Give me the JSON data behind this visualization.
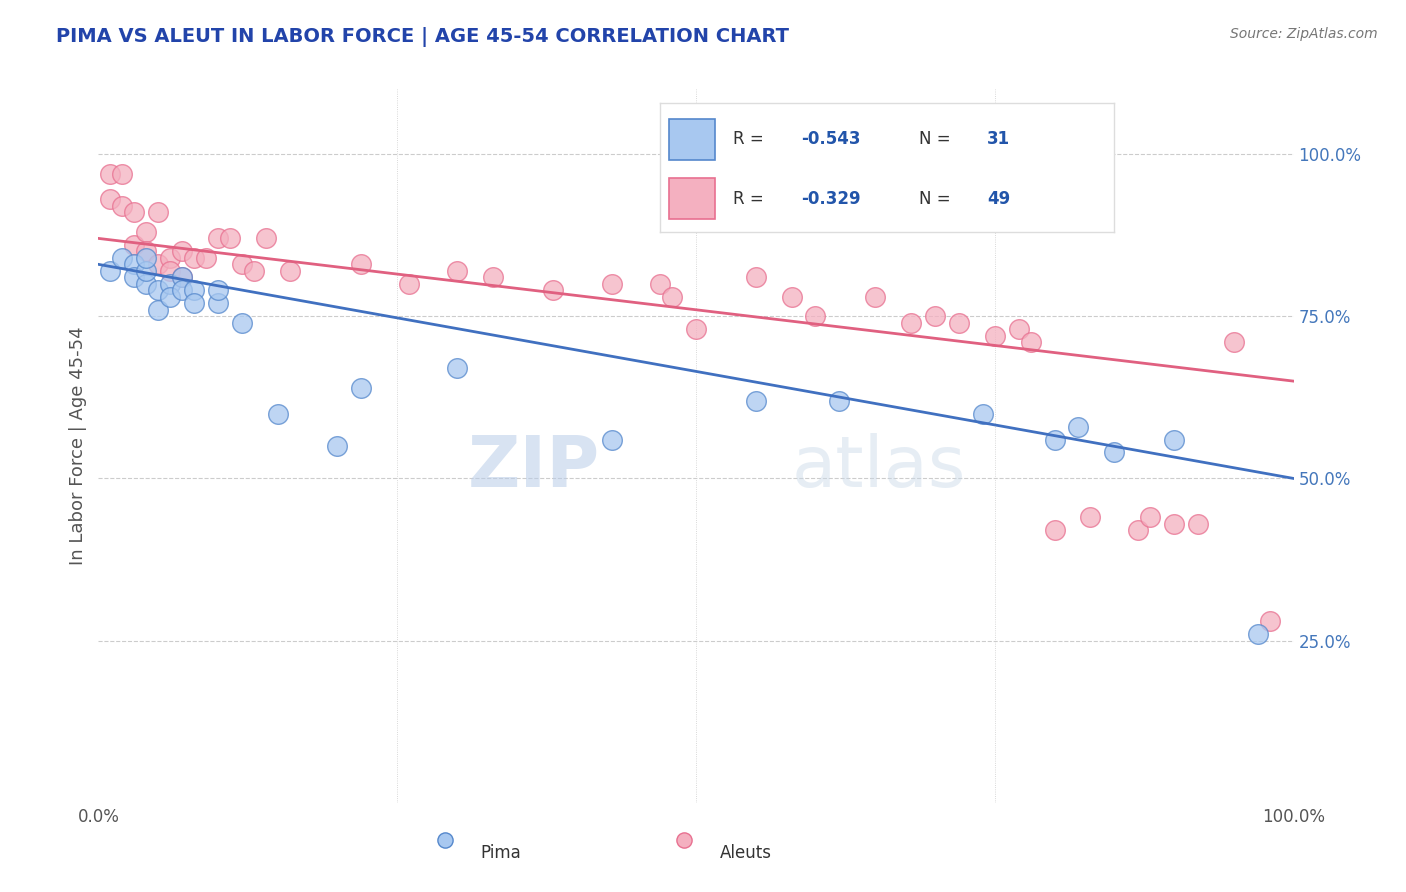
{
  "title": "PIMA VS ALEUT IN LABOR FORCE | AGE 45-54 CORRELATION CHART",
  "source_text": "Source: ZipAtlas.com",
  "ylabel": "In Labor Force | Age 45-54",
  "xlim": [
    0.0,
    1.0
  ],
  "ylim": [
    0.0,
    1.1
  ],
  "watermark_zip": "ZIP",
  "watermark_atlas": "atlas",
  "legend_R_pima": "-0.543",
  "legend_N_pima": "31",
  "legend_R_aleut": "-0.329",
  "legend_N_aleut": "49",
  "pima_color": "#A8C8F0",
  "aleut_color": "#F4B0C0",
  "pima_edge_color": "#5588CC",
  "aleut_edge_color": "#E87090",
  "pima_line_color": "#4070C0",
  "aleut_line_color": "#E06080",
  "pima_x": [
    0.01,
    0.02,
    0.03,
    0.03,
    0.04,
    0.04,
    0.04,
    0.05,
    0.05,
    0.06,
    0.06,
    0.07,
    0.07,
    0.08,
    0.08,
    0.1,
    0.1,
    0.12,
    0.15,
    0.2,
    0.22,
    0.3,
    0.43,
    0.55,
    0.62,
    0.74,
    0.8,
    0.82,
    0.85,
    0.9,
    0.97
  ],
  "pima_y": [
    0.82,
    0.84,
    0.83,
    0.81,
    0.8,
    0.82,
    0.84,
    0.76,
    0.79,
    0.8,
    0.78,
    0.81,
    0.79,
    0.79,
    0.77,
    0.77,
    0.79,
    0.74,
    0.6,
    0.55,
    0.64,
    0.67,
    0.56,
    0.62,
    0.62,
    0.6,
    0.56,
    0.58,
    0.54,
    0.56,
    0.26
  ],
  "aleut_x": [
    0.01,
    0.01,
    0.02,
    0.02,
    0.03,
    0.03,
    0.04,
    0.04,
    0.05,
    0.05,
    0.06,
    0.06,
    0.07,
    0.07,
    0.08,
    0.09,
    0.1,
    0.11,
    0.12,
    0.13,
    0.14,
    0.16,
    0.22,
    0.26,
    0.3,
    0.33,
    0.38,
    0.43,
    0.47,
    0.48,
    0.5,
    0.55,
    0.58,
    0.6,
    0.65,
    0.68,
    0.7,
    0.72,
    0.75,
    0.77,
    0.78,
    0.8,
    0.83,
    0.87,
    0.88,
    0.9,
    0.92,
    0.95,
    0.98
  ],
  "aleut_y": [
    0.97,
    0.93,
    0.97,
    0.92,
    0.91,
    0.86,
    0.88,
    0.85,
    0.83,
    0.91,
    0.84,
    0.82,
    0.85,
    0.81,
    0.84,
    0.84,
    0.87,
    0.87,
    0.83,
    0.82,
    0.87,
    0.82,
    0.83,
    0.8,
    0.82,
    0.81,
    0.79,
    0.8,
    0.8,
    0.78,
    0.73,
    0.81,
    0.78,
    0.75,
    0.78,
    0.74,
    0.75,
    0.74,
    0.72,
    0.73,
    0.71,
    0.42,
    0.44,
    0.42,
    0.44,
    0.43,
    0.43,
    0.71,
    0.28
  ],
  "background_color": "#FFFFFF",
  "grid_color": "#CCCCCC",
  "title_color": "#2244AA",
  "source_color": "#777777",
  "axis_color": "#4477BB",
  "tick_color": "#555555"
}
